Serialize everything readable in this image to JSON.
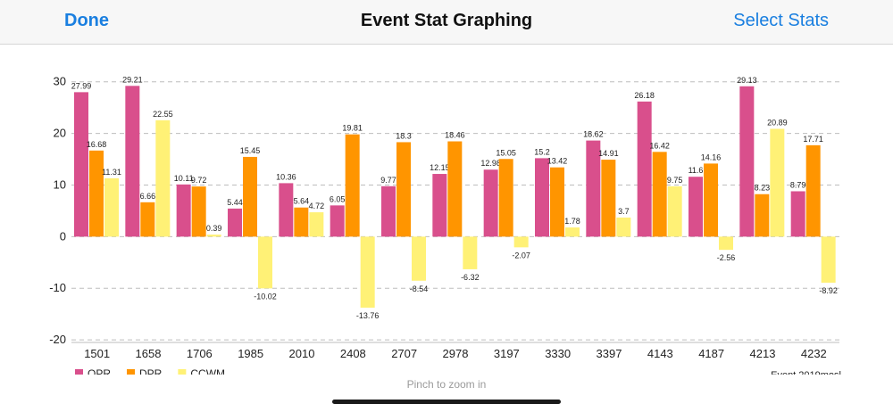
{
  "navbar": {
    "done_label": "Done",
    "title": "Event Stat Graphing",
    "select_label": "Select Stats"
  },
  "hint": "Pinch to zoom in",
  "event_label": "Event 2019mosl",
  "colors": {
    "OPR": "#d94f8c",
    "DPR": "#ff9500",
    "CCWM": "#fff176",
    "accent": "#1a7fe0"
  },
  "chart_data": {
    "type": "bar",
    "categories": [
      "1501",
      "1658",
      "1706",
      "1985",
      "2010",
      "2408",
      "2707",
      "2978",
      "3197",
      "3330",
      "3397",
      "4143",
      "4187",
      "4213",
      "4232"
    ],
    "series": [
      {
        "name": "OPR",
        "values": [
          27.99,
          29.21,
          10.11,
          5.44,
          10.36,
          6.05,
          9.77,
          12.15,
          12.98,
          15.2,
          18.62,
          26.18,
          11.6,
          29.13,
          8.79
        ]
      },
      {
        "name": "DPR",
        "values": [
          16.68,
          6.66,
          9.72,
          15.45,
          5.64,
          19.81,
          18.3,
          18.46,
          15.05,
          13.42,
          14.91,
          16.42,
          14.16,
          8.23,
          17.71
        ]
      },
      {
        "name": "CCWM",
        "values": [
          11.31,
          22.55,
          0.39,
          -10.02,
          4.72,
          -13.76,
          -8.54,
          -6.32,
          -2.07,
          1.78,
          3.7,
          9.75,
          -2.56,
          20.89,
          -8.92
        ]
      }
    ],
    "data_labels": [
      [
        "27.99",
        "29.21",
        "10.11",
        "5.44",
        "10.36",
        "6.05",
        "9.77",
        "12.15",
        "12.98",
        "15.2",
        "18.62",
        "26.18",
        "11.6",
        "29.13",
        "8.79"
      ],
      [
        "16.68",
        "6.66",
        "9.72",
        "15.45",
        "5.64",
        "19.81",
        "18.3",
        "18.46",
        "15.05",
        "13.42",
        "14.91",
        "16.42",
        "14.16",
        "8.23",
        "17.71"
      ],
      [
        "11.31",
        "22.55",
        "0.39",
        "-10.02",
        "4.72",
        "-13.76",
        "-8.54",
        "-6.32",
        "-2.07",
        "1.78",
        "3.7",
        "9.75",
        "-2.56",
        "20.89",
        "-8.92"
      ]
    ],
    "yticks": [
      "30",
      "20",
      "10",
      "0",
      "-10",
      "-20"
    ],
    "ytick_values": [
      30,
      20,
      10,
      0,
      -10,
      -20
    ],
    "ylim": [
      -20.5,
      30.3
    ],
    "grid": true,
    "legend_position": "bottom-left"
  }
}
